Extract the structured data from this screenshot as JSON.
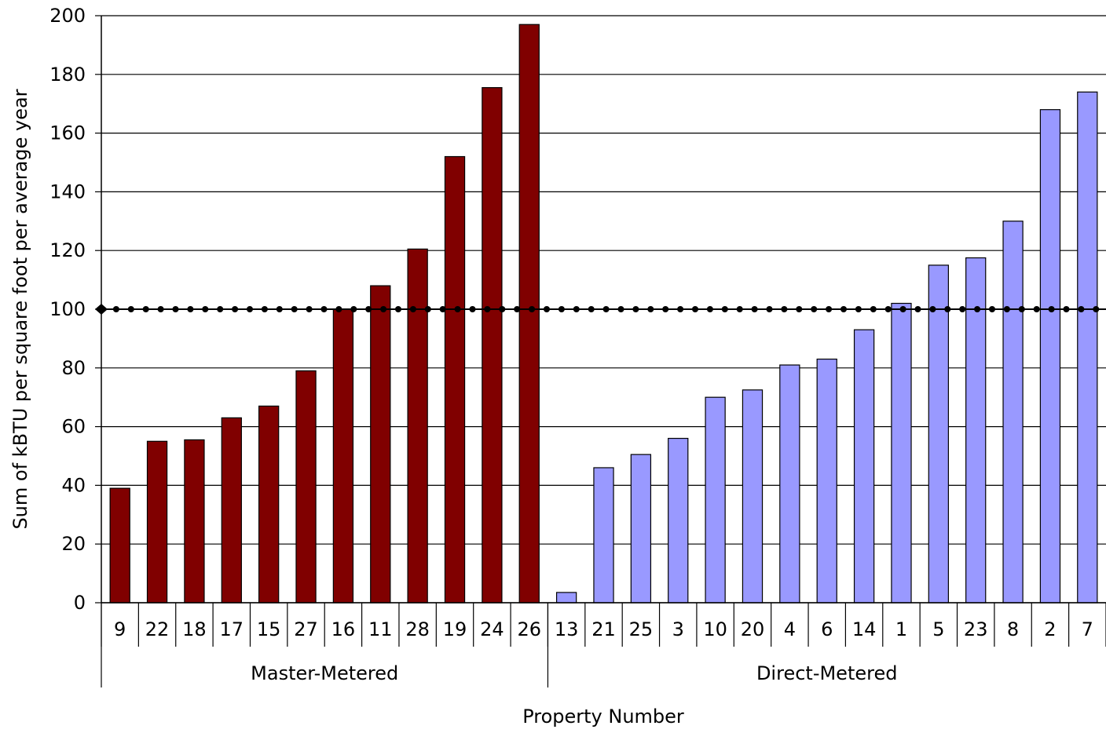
{
  "chart_data": {
    "type": "bar",
    "xlabel": "Property Number",
    "ylabel": "Sum of kBTU per square foot per average year",
    "ylim": [
      0,
      200
    ],
    "yticks": [
      0,
      20,
      40,
      60,
      80,
      100,
      120,
      140,
      160,
      180,
      200
    ],
    "grid": true,
    "reference_line": {
      "value": 100,
      "style": "dotted"
    },
    "categories": [
      "9",
      "22",
      "18",
      "17",
      "15",
      "27",
      "16",
      "11",
      "28",
      "19",
      "24",
      "26",
      "13",
      "21",
      "25",
      "3",
      "10",
      "20",
      "4",
      "6",
      "14",
      "1",
      "5",
      "23",
      "8",
      "2",
      "7"
    ],
    "groups": [
      {
        "name": "Master-Metered",
        "start": 0,
        "count": 12,
        "color": "#800000"
      },
      {
        "name": "Direct-Metered",
        "start": 12,
        "count": 15,
        "color": "#9999ff"
      }
    ],
    "values": [
      39,
      55,
      55.5,
      63,
      67,
      79,
      100,
      108,
      120.5,
      152,
      175.5,
      197,
      3.5,
      46,
      50.5,
      56,
      70,
      72.5,
      81,
      83,
      93,
      102,
      115,
      117.5,
      130,
      168,
      174
    ]
  }
}
